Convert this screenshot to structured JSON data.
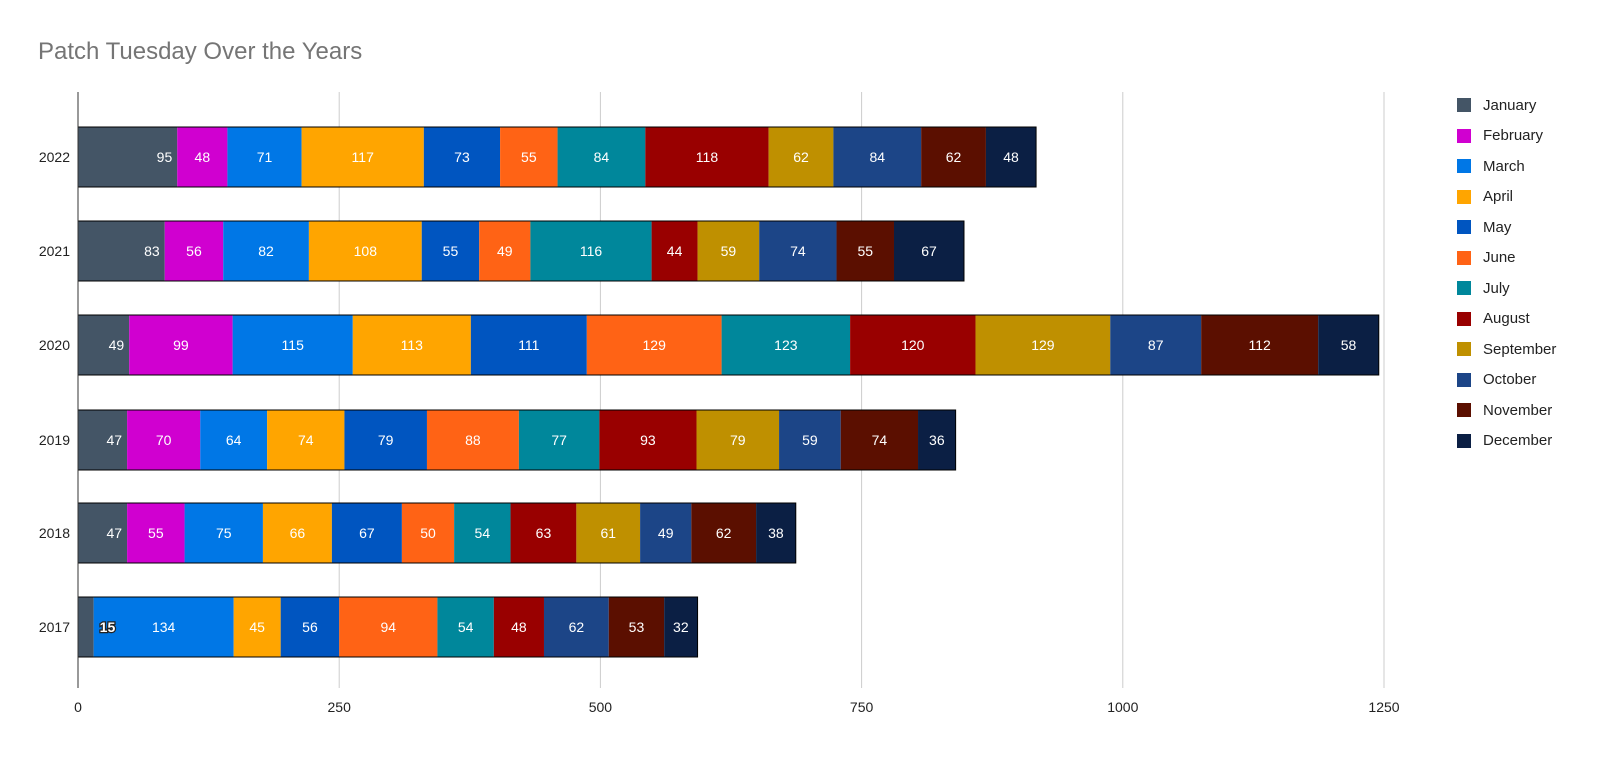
{
  "chart_data": {
    "type": "bar",
    "orientation": "horizontal",
    "stacked": true,
    "title": "Patch Tuesday Over the Years",
    "categories": [
      "2022",
      "2021",
      "2020",
      "2019",
      "2018",
      "2017"
    ],
    "series": [
      {
        "name": "January",
        "color": "#445566",
        "values": [
          95,
          83,
          49,
          47,
          47,
          15
        ]
      },
      {
        "name": "February",
        "color": "#d000d0",
        "values": [
          48,
          56,
          99,
          70,
          55,
          null
        ]
      },
      {
        "name": "March",
        "color": "#0077e6",
        "values": [
          71,
          82,
          115,
          64,
          75,
          134
        ]
      },
      {
        "name": "April",
        "color": "#ffa500",
        "values": [
          117,
          108,
          113,
          74,
          66,
          45
        ]
      },
      {
        "name": "May",
        "color": "#0055c0",
        "values": [
          73,
          55,
          111,
          79,
          67,
          56
        ]
      },
      {
        "name": "June",
        "color": "#ff6315",
        "values": [
          55,
          49,
          129,
          88,
          50,
          94
        ]
      },
      {
        "name": "July",
        "color": "#00879b",
        "values": [
          84,
          116,
          123,
          77,
          54,
          54
        ]
      },
      {
        "name": "August",
        "color": "#990000",
        "values": [
          118,
          44,
          120,
          93,
          63,
          48
        ]
      },
      {
        "name": "September",
        "color": "#bf9000",
        "values": [
          62,
          59,
          129,
          79,
          61,
          null
        ]
      },
      {
        "name": "October",
        "color": "#1c4587",
        "values": [
          84,
          74,
          87,
          59,
          49,
          62
        ]
      },
      {
        "name": "November",
        "color": "#5b0f00",
        "values": [
          62,
          55,
          112,
          74,
          62,
          53
        ]
      },
      {
        "name": "December",
        "color": "#0b1f44",
        "values": [
          48,
          67,
          58,
          36,
          38,
          32
        ]
      }
    ],
    "xlim": [
      0,
      1250
    ],
    "xticks": [
      "0",
      "250",
      "500",
      "750",
      "1000",
      "1250"
    ],
    "grid": true,
    "legend_position": "right",
    "data_labels": true,
    "xlabel": "",
    "ylabel": ""
  }
}
